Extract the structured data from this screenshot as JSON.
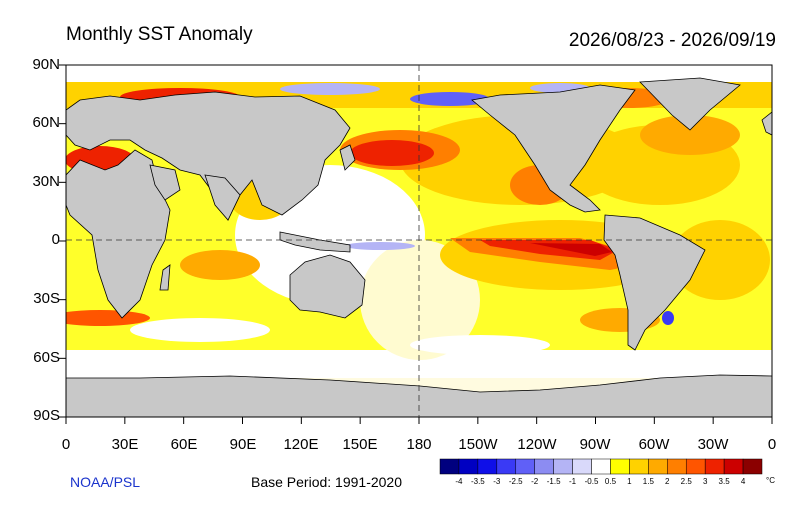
{
  "title": "Monthly SST Anomaly",
  "date_range": "2026/08/23 - 2026/09/19",
  "credit": "NOAA/PSL",
  "base_period": "Base Period: 1991-2020",
  "lat_labels": [
    "90N",
    "60N",
    "30N",
    "0",
    "30S",
    "60S",
    "90S"
  ],
  "lon_labels": [
    "0",
    "30E",
    "60E",
    "90E",
    "120E",
    "150E",
    "180",
    "150W",
    "120W",
    "90W",
    "60W",
    "30W",
    "0"
  ],
  "colorbar": {
    "unit": "°C",
    "tick_labels": [
      "-4",
      "-3.5",
      "-3",
      "-2.5",
      "-2",
      "-1.5",
      "-1",
      "-0.5",
      "0.5",
      "1",
      "1.5",
      "2",
      "2.5",
      "3",
      "3.5",
      "4"
    ],
    "colors": [
      "#00007f",
      "#0000c2",
      "#0f0fe8",
      "#3a3af5",
      "#6060f7",
      "#8c8cf2",
      "#b4b4f5",
      "#d9d9fa",
      "#ffffff",
      "#ffff00",
      "#ffd200",
      "#ffaa00",
      "#ff7f00",
      "#ff5500",
      "#ee2200",
      "#cc0000",
      "#8b0000"
    ]
  },
  "colors": {
    "land": "#c8c8c8",
    "ocean_neutral": "#ffffff",
    "credit_text": "#1a33cc"
  }
}
